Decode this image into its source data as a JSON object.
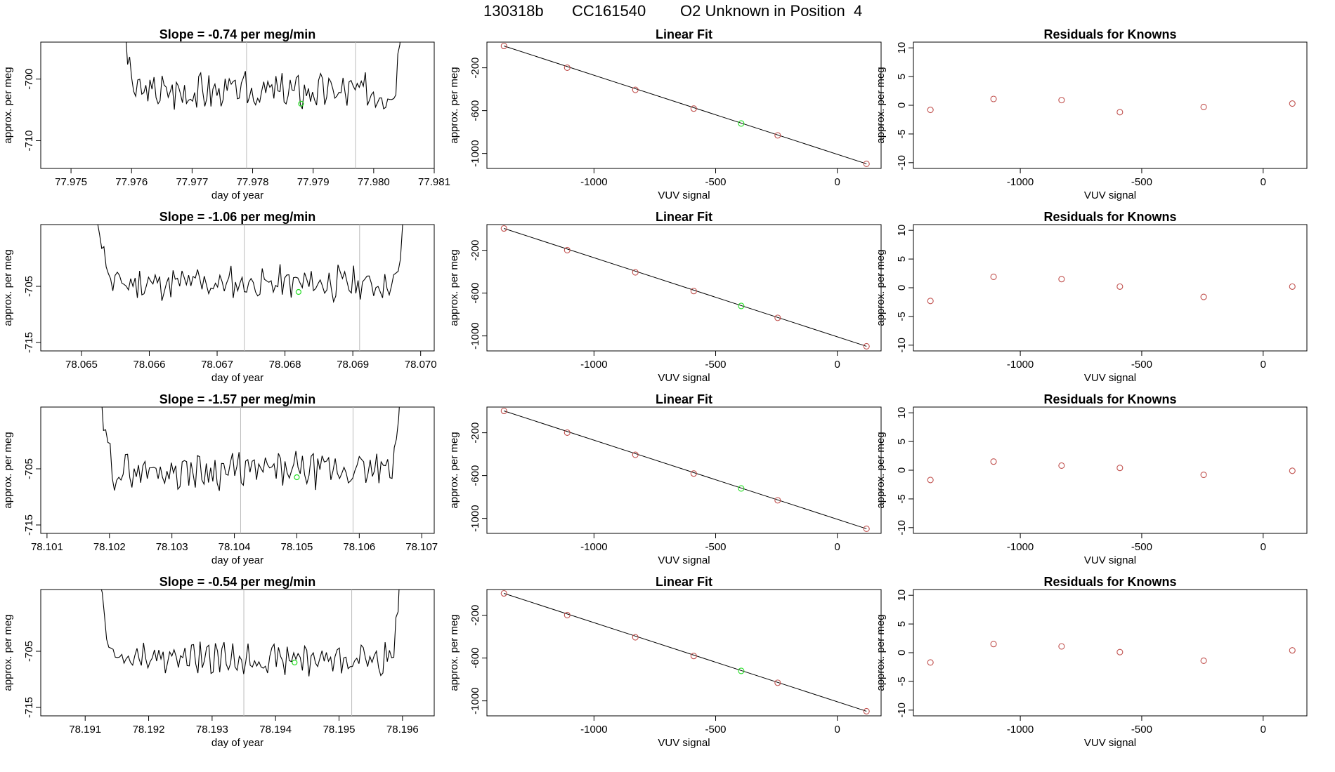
{
  "header": {
    "run_id": "130318b",
    "tank_id": "CC161540",
    "description": "O2 Unknown in Position  4"
  },
  "colors": {
    "trace": "#000000",
    "known_point": "#c0504d",
    "unknown_point": "#22dd22",
    "vline": "#bbbbbb"
  },
  "chart_data": [
    {
      "type": "line",
      "row": 1,
      "title_prefix": "Slope = ",
      "slope": "-0.74",
      "title_suffix": " per meg/min",
      "xlabel": "day of year",
      "ylabel": "approx. per meg",
      "xlim": [
        77.9745,
        77.981
      ],
      "ylim": [
        -714.5,
        -694
      ],
      "xticks": [
        "77.975",
        "77.976",
        "77.977",
        "77.978",
        "77.979",
        "77.980",
        "77.981"
      ],
      "yticks": [
        "-700",
        "-710"
      ],
      "x_start": 77.9758,
      "x_end": 77.9805,
      "baseline": -702,
      "noise": 2.6,
      "seed": 3,
      "vlines": [
        77.9779,
        77.9797
      ],
      "marker": {
        "x": 77.9788,
        "y": -704
      }
    },
    {
      "type": "scatter",
      "row": 1,
      "title": "Linear Fit",
      "xlabel": "VUV signal",
      "ylabel": "approx. per meg",
      "xlim": [
        -1440,
        180
      ],
      "ylim": [
        -1140,
        40
      ],
      "xticks": [
        "-1000",
        "-500",
        "0"
      ],
      "yticks": [
        "-200",
        "-600",
        "-1000"
      ],
      "points": [
        {
          "x": -1370,
          "y": 4
        },
        {
          "x": -1110,
          "y": -199
        },
        {
          "x": -830,
          "y": -406
        },
        {
          "x": -590,
          "y": -581
        },
        {
          "x": -395,
          "y": -720
        },
        {
          "x": -245,
          "y": -831
        },
        {
          "x": 120,
          "y": -1097
        }
      ],
      "unknown_index": 4,
      "line": {
        "x": [
          -1370,
          120
        ],
        "y": [
          4,
          -1097
        ]
      }
    },
    {
      "type": "scatter",
      "row": 1,
      "title": "Residuals for Knowns",
      "xlabel": "VUV signal",
      "ylabel": "",
      "xlim": [
        -1440,
        180
      ],
      "ylim": [
        -11,
        11
      ],
      "xticks": [
        "-1000",
        "-500",
        "0"
      ],
      "yticks": [
        "10",
        "5",
        "0",
        "-5",
        "-10"
      ],
      "points": [
        {
          "x": -1370,
          "y": -0.8
        },
        {
          "x": -1110,
          "y": 1.1
        },
        {
          "x": -830,
          "y": 0.9
        },
        {
          "x": -590,
          "y": -1.2
        },
        {
          "x": -245,
          "y": -0.3
        },
        {
          "x": 120,
          "y": 0.3
        }
      ]
    },
    {
      "type": "line",
      "row": 2,
      "title_prefix": "Slope = ",
      "slope": "-1.06",
      "title_suffix": " per meg/min",
      "xlabel": "day of year",
      "ylabel": "approx. per meg",
      "xlim": [
        78.0644,
        78.0702
      ],
      "ylim": [
        -716.5,
        -694
      ],
      "xticks": [
        "78.065",
        "78.066",
        "78.067",
        "78.068",
        "78.069",
        "78.070"
      ],
      "yticks": [
        "-705",
        "-715"
      ],
      "x_start": 78.0652,
      "x_end": 78.0698,
      "baseline": -704.5,
      "noise": 2.6,
      "seed": 11,
      "vlines": [
        78.0674,
        78.0691
      ],
      "marker": {
        "x": 78.0682,
        "y": -706
      }
    },
    {
      "type": "scatter",
      "row": 2,
      "title": "Linear Fit",
      "xlabel": "VUV signal",
      "ylabel": "approx. per meg",
      "xlim": [
        -1440,
        180
      ],
      "ylim": [
        -1140,
        40
      ],
      "xticks": [
        "-1000",
        "-500",
        "0"
      ],
      "yticks": [
        "-200",
        "-600",
        "-1000"
      ],
      "points": [
        {
          "x": -1370,
          "y": 4
        },
        {
          "x": -1110,
          "y": -199
        },
        {
          "x": -830,
          "y": -406
        },
        {
          "x": -590,
          "y": -581
        },
        {
          "x": -395,
          "y": -720
        },
        {
          "x": -245,
          "y": -831
        },
        {
          "x": 120,
          "y": -1097
        }
      ],
      "unknown_index": 4,
      "line": {
        "x": [
          -1370,
          120
        ],
        "y": [
          4,
          -1097
        ]
      }
    },
    {
      "type": "scatter",
      "row": 2,
      "title": "Residuals for Knowns",
      "xlabel": "VUV signal",
      "ylabel": "",
      "xlim": [
        -1440,
        180
      ],
      "ylim": [
        -11,
        11
      ],
      "xticks": [
        "-1000",
        "-500",
        "0"
      ],
      "yticks": [
        "10",
        "5",
        "0",
        "-5",
        "-10"
      ],
      "points": [
        {
          "x": -1370,
          "y": -2.3
        },
        {
          "x": -1110,
          "y": 1.9
        },
        {
          "x": -830,
          "y": 1.5
        },
        {
          "x": -590,
          "y": 0.2
        },
        {
          "x": -245,
          "y": -1.6
        },
        {
          "x": 120,
          "y": 0.2
        }
      ]
    },
    {
      "type": "line",
      "row": 3,
      "title_prefix": "Slope = ",
      "slope": "-1.57",
      "title_suffix": " per meg/min",
      "xlabel": "day of year",
      "ylabel": "approx. per meg",
      "xlim": [
        78.1009,
        78.1072
      ],
      "ylim": [
        -716.5,
        -694
      ],
      "xticks": [
        "78.101",
        "78.102",
        "78.103",
        "78.104",
        "78.105",
        "78.106",
        "78.107"
      ],
      "yticks": [
        "-705",
        "-715"
      ],
      "x_start": 78.1018,
      "x_end": 78.1067,
      "baseline": -705.3,
      "noise": 2.7,
      "seed": 29,
      "vlines": [
        78.1041,
        78.1059
      ],
      "marker": {
        "x": 78.105,
        "y": -706.5
      }
    },
    {
      "type": "scatter",
      "row": 3,
      "title": "Linear Fit",
      "xlabel": "VUV signal",
      "ylabel": "approx. per meg",
      "xlim": [
        -1440,
        180
      ],
      "ylim": [
        -1140,
        40
      ],
      "xticks": [
        "-1000",
        "-500",
        "0"
      ],
      "yticks": [
        "-200",
        "-600",
        "-1000"
      ],
      "points": [
        {
          "x": -1370,
          "y": 4
        },
        {
          "x": -1110,
          "y": -199
        },
        {
          "x": -830,
          "y": -406
        },
        {
          "x": -590,
          "y": -581
        },
        {
          "x": -395,
          "y": -720
        },
        {
          "x": -245,
          "y": -831
        },
        {
          "x": 120,
          "y": -1097
        }
      ],
      "unknown_index": 4,
      "line": {
        "x": [
          -1370,
          120
        ],
        "y": [
          4,
          -1097
        ]
      }
    },
    {
      "type": "scatter",
      "row": 3,
      "title": "Residuals for Knowns",
      "xlabel": "VUV signal",
      "ylabel": "",
      "xlim": [
        -1440,
        180
      ],
      "ylim": [
        -11,
        11
      ],
      "xticks": [
        "-1000",
        "-500",
        "0"
      ],
      "yticks": [
        "10",
        "5",
        "0",
        "-5",
        "-10"
      ],
      "points": [
        {
          "x": -1370,
          "y": -1.7
        },
        {
          "x": -1110,
          "y": 1.5
        },
        {
          "x": -830,
          "y": 0.8
        },
        {
          "x": -590,
          "y": 0.4
        },
        {
          "x": -245,
          "y": -0.8
        },
        {
          "x": 120,
          "y": -0.1
        }
      ]
    },
    {
      "type": "line",
      "row": 4,
      "title_prefix": "Slope = ",
      "slope": "-0.54",
      "title_suffix": " per meg/min",
      "xlabel": "day of year",
      "ylabel": "approx. per meg",
      "xlim": [
        78.1903,
        78.1965
      ],
      "ylim": [
        -716.5,
        -694
      ],
      "xticks": [
        "78.191",
        "78.192",
        "78.193",
        "78.194",
        "78.195",
        "78.196"
      ],
      "yticks": [
        "-705",
        "-715"
      ],
      "x_start": 78.1912,
      "x_end": 78.196,
      "baseline": -706.3,
      "noise": 2.4,
      "seed": 47,
      "vlines": [
        78.1935,
        78.1952
      ],
      "marker": {
        "x": 78.1943,
        "y": -707
      }
    },
    {
      "type": "scatter",
      "row": 4,
      "title": "Linear Fit",
      "xlabel": "VUV signal",
      "ylabel": "approx. per meg",
      "xlim": [
        -1440,
        180
      ],
      "ylim": [
        -1140,
        40
      ],
      "xticks": [
        "-1000",
        "-500",
        "0"
      ],
      "yticks": [
        "-200",
        "-600",
        "-1000"
      ],
      "points": [
        {
          "x": -1370,
          "y": 4
        },
        {
          "x": -1110,
          "y": -199
        },
        {
          "x": -830,
          "y": -406
        },
        {
          "x": -590,
          "y": -581
        },
        {
          "x": -395,
          "y": -720
        },
        {
          "x": -245,
          "y": -831
        },
        {
          "x": 120,
          "y": -1097
        }
      ],
      "unknown_index": 4,
      "line": {
        "x": [
          -1370,
          120
        ],
        "y": [
          4,
          -1097
        ]
      }
    },
    {
      "type": "scatter",
      "row": 4,
      "title": "Residuals for Knowns",
      "xlabel": "VUV signal",
      "ylabel": "",
      "xlim": [
        -1440,
        180
      ],
      "ylim": [
        -11,
        11
      ],
      "xticks": [
        "-1000",
        "-500",
        "0"
      ],
      "yticks": [
        "10",
        "5",
        "0",
        "-5",
        "-10"
      ],
      "points": [
        {
          "x": -1370,
          "y": -1.7
        },
        {
          "x": -1110,
          "y": 1.5
        },
        {
          "x": -830,
          "y": 1.1
        },
        {
          "x": -590,
          "y": 0.1
        },
        {
          "x": -245,
          "y": -1.4
        },
        {
          "x": 120,
          "y": 0.4
        }
      ]
    }
  ]
}
